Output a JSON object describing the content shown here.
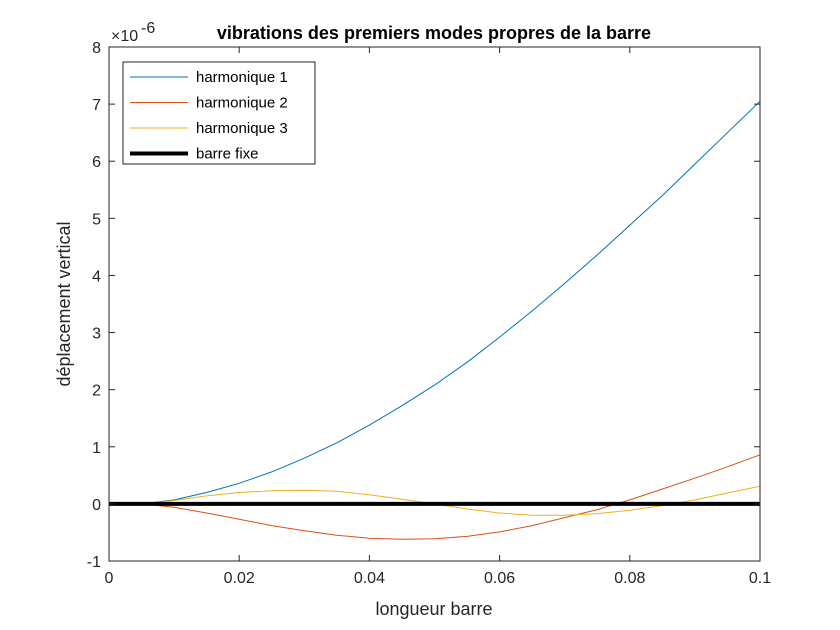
{
  "chart_data": {
    "type": "line",
    "title": "vibrations des premiers modes propres de la barre",
    "xlabel": "longueur barre",
    "ylabel": "déplacement vertical",
    "y_multiplier": "×10",
    "y_exponent": "-6",
    "xlim": [
      0,
      0.1
    ],
    "ylim": [
      -1,
      8
    ],
    "x_ticks": [
      0,
      0.02,
      0.04,
      0.06,
      0.08,
      0.1
    ],
    "x_tick_labels": [
      "0",
      "0.02",
      "0.04",
      "0.06",
      "0.08",
      "0.1"
    ],
    "y_ticks": [
      -1,
      0,
      1,
      2,
      3,
      4,
      5,
      6,
      7,
      8
    ],
    "y_tick_labels": [
      "-1",
      "0",
      "1",
      "2",
      "3",
      "4",
      "5",
      "6",
      "7",
      "8"
    ],
    "grid": false,
    "legend_position": "top-left",
    "series": [
      {
        "name": "harmonique 1",
        "color": "#0072BD",
        "x": [
          0.005,
          0.01,
          0.015,
          0.02,
          0.025,
          0.03,
          0.035,
          0.04,
          0.045,
          0.05,
          0.055,
          0.06,
          0.065,
          0.07,
          0.075,
          0.08,
          0.085,
          0.09,
          0.095,
          0.1
        ],
        "y": [
          0,
          0.07,
          0.2,
          0.36,
          0.56,
          0.8,
          1.07,
          1.38,
          1.72,
          2.08,
          2.48,
          2.92,
          3.38,
          3.86,
          4.36,
          4.88,
          5.4,
          5.95,
          6.5,
          7.05
        ]
      },
      {
        "name": "harmonique 2",
        "color": "#D95319",
        "x": [
          0.005,
          0.01,
          0.015,
          0.02,
          0.025,
          0.03,
          0.035,
          0.04,
          0.045,
          0.05,
          0.055,
          0.06,
          0.065,
          0.07,
          0.075,
          0.08,
          0.085,
          0.09,
          0.095,
          0.1
        ],
        "y": [
          0,
          -0.06,
          -0.16,
          -0.27,
          -0.38,
          -0.47,
          -0.55,
          -0.6,
          -0.62,
          -0.61,
          -0.57,
          -0.49,
          -0.38,
          -0.24,
          -0.1,
          0.07,
          0.26,
          0.45,
          0.65,
          0.86
        ]
      },
      {
        "name": "harmonique 3",
        "color": "#EDB120",
        "x": [
          0.005,
          0.01,
          0.015,
          0.02,
          0.025,
          0.03,
          0.035,
          0.04,
          0.045,
          0.05,
          0.055,
          0.06,
          0.065,
          0.07,
          0.075,
          0.08,
          0.085,
          0.09,
          0.095,
          0.1
        ],
        "y": [
          0,
          0.06,
          0.14,
          0.2,
          0.23,
          0.24,
          0.22,
          0.16,
          0.08,
          0,
          -0.09,
          -0.16,
          -0.2,
          -0.2,
          -0.17,
          -0.11,
          -0.03,
          0.07,
          0.19,
          0.31
        ]
      },
      {
        "name": "barre fixe",
        "color": "#000000",
        "width": 4,
        "x": [
          0,
          0.1
        ],
        "y": [
          0,
          0
        ]
      }
    ]
  }
}
